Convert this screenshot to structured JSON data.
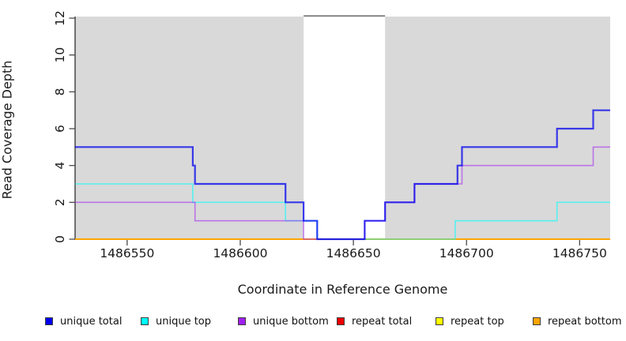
{
  "chart_data": {
    "type": "line",
    "subtype": "step-coverage",
    "title": "",
    "xlabel": "Coordinate in Reference Genome",
    "ylabel": "Read Coverage Depth",
    "xlim": [
      1486527,
      1486763.5
    ],
    "ylim": [
      0,
      12
    ],
    "x_ticks": [
      1486550,
      1486600,
      1486650,
      1486700,
      1486750
    ],
    "y_ticks": [
      0,
      2,
      4,
      6,
      8,
      10,
      12
    ],
    "grid": false,
    "legend_position": "bottom",
    "plot_bg_color": "#d9d9d9",
    "axis_color": "#3c3c3c",
    "tick_color": "#4a4a4a",
    "text_color": "#1a1a1a",
    "highlight_region": {
      "x_start": 1486628,
      "x_end": 1486664,
      "fill": "#ffffff",
      "top_border_color": "#858585"
    },
    "series": [
      {
        "name": "repeat total",
        "color": "#dd0000",
        "opacity": 1,
        "width": 1.5,
        "x": [
          1486527
        ],
        "y": [
          0
        ]
      },
      {
        "name": "repeat top",
        "color": "#ffff00",
        "opacity": 1,
        "width": 1.5,
        "x": [
          1486527
        ],
        "y": [
          0
        ]
      },
      {
        "name": "repeat bottom",
        "color": "#ffa500",
        "opacity": 1,
        "width": 2,
        "x": [
          1486527
        ],
        "y": [
          0
        ]
      },
      {
        "name": "unique top",
        "color": "#00ffff",
        "opacity": 0.6,
        "width": 1.6,
        "x": [
          1486527,
          1486579,
          1486620,
          1486634,
          1486695,
          1486740
        ],
        "y": [
          3,
          2,
          1,
          0,
          1,
          2
        ]
      },
      {
        "name": "unique bottom",
        "color": "#a020f0",
        "opacity": 0.55,
        "width": 1.6,
        "x": [
          1486527,
          1486580,
          1486628,
          1486655,
          1486664,
          1486677,
          1486698,
          1486756
        ],
        "y": [
          2,
          1,
          0,
          1,
          2,
          3,
          4,
          5
        ]
      },
      {
        "name": "unique total",
        "color": "#0000ee",
        "opacity": 0.75,
        "width": 2.2,
        "x": [
          1486527,
          1486579,
          1486580,
          1486620,
          1486628,
          1486634,
          1486655,
          1486664,
          1486677,
          1486696,
          1486698,
          1486740,
          1486756
        ],
        "y": [
          5,
          4,
          3,
          2,
          1,
          0,
          1,
          2,
          3,
          4,
          5,
          6,
          7
        ]
      }
    ],
    "legend": [
      {
        "label": "unique total",
        "color": "#0000ee"
      },
      {
        "label": "unique top",
        "color": "#00ffff"
      },
      {
        "label": "unique bottom",
        "color": "#a020f0"
      },
      {
        "label": "repeat total",
        "color": "#ee0000"
      },
      {
        "label": "repeat top",
        "color": "#ffff00"
      },
      {
        "label": "repeat bottom",
        "color": "#ffa500"
      }
    ]
  }
}
